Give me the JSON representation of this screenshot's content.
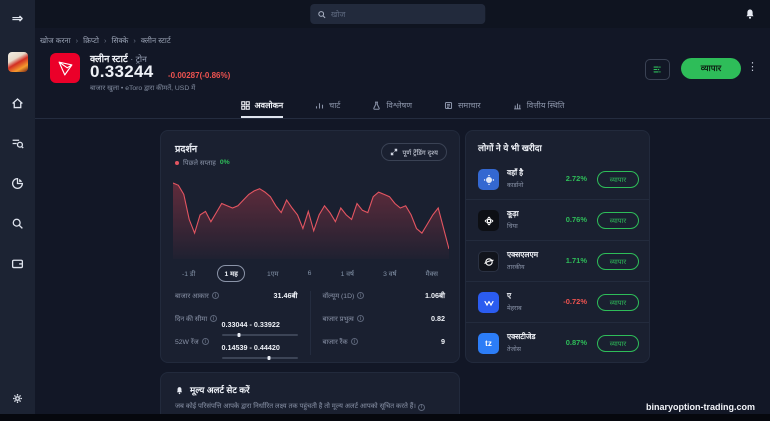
{
  "topbar": {
    "search_placeholder": "खोज"
  },
  "breadcrumb": {
    "separator": "›",
    "items": [
      "खोज करना",
      "क्रिप्टो",
      "सिक्के",
      "क्लीन स्टार्ट"
    ]
  },
  "asset_header": {
    "name": "क्लीन स्टार्ट",
    "name_sep": "·",
    "symbol": "ट्रोन",
    "price": "0.33244",
    "change": "-0.00287(-0.86%)",
    "market_status": "बाजार खुला • eToro द्वारा कीमतें, USD में",
    "trade_label": "व्यापार",
    "logo_icon": "tron-icon"
  },
  "tabs": [
    {
      "label": "अवलोकन",
      "icon": "grid-icon",
      "active": true
    },
    {
      "label": "चार्ट",
      "icon": "chart-bars-icon",
      "active": false
    },
    {
      "label": "विश्लेषण",
      "icon": "flask-icon",
      "active": false
    },
    {
      "label": "समाचार",
      "icon": "news-icon",
      "active": false
    },
    {
      "label": "वित्तीय स्थिति",
      "icon": "bar-chart-icon",
      "active": false
    }
  ],
  "performance": {
    "title": "प्रदर्शन",
    "legend_label": "पिछले सप्ताह",
    "legend_value": "0%",
    "fullscreen_label": "पूर्ण ट्रेंडिंग दृश्य",
    "ranges": [
      "-1 डी",
      "1 मह",
      "1एम",
      "6",
      "1 वर्ष",
      "3 वर्ष",
      "मैक्स"
    ],
    "selected_range": "1 मह",
    "stats_left": [
      {
        "label": "बाजार आकार",
        "value": "31.46बी"
      },
      {
        "label": "दिन की सीमा",
        "value": "0.33044 - 0.33922",
        "marker": 0.23
      },
      {
        "label": "52W रेंज",
        "value": "0.14539 - 0.44420",
        "marker": 0.63
      }
    ],
    "stats_right": [
      {
        "label": "वॉल्यूम (1D)",
        "value": "1.06बी"
      },
      {
        "label": "बाजार प्रभुत्व",
        "value": "0.82"
      },
      {
        "label": "बाजार रैंक",
        "value": "9"
      }
    ]
  },
  "chart_data": {
    "type": "area",
    "title": "प्रदर्शन",
    "series_name": "TRX/USD",
    "x_range": "1 मह",
    "line_color": "#e35561",
    "ylim": [
      0.325,
      0.3425
    ],
    "values": [
      0.33935,
      0.33894,
      0.3373,
      0.33279,
      0.33033,
      0.33361,
      0.33423,
      0.33238,
      0.33402,
      0.33566,
      0.33525,
      0.33484,
      0.33525,
      0.33628,
      0.3373,
      0.33792,
      0.33833,
      0.33771,
      0.33689,
      0.33525,
      0.33402,
      0.33628,
      0.33484,
      0.33361,
      0.33115,
      0.33423,
      0.33074,
      0.33361,
      0.33525,
      0.33402,
      0.33238,
      0.33484,
      0.33361,
      0.33279,
      0.33566,
      0.33443,
      0.33402,
      0.33689,
      0.33771,
      0.3373,
      0.33689,
      0.33566,
      0.33484,
      0.33525,
      0.33361,
      0.33115,
      0.33033,
      0.33197,
      0.33361,
      0.33484,
      0.33115,
      0.32746
    ]
  },
  "also_bought": {
    "title": "लोगों ने ये भी खरीदा",
    "trade_label": "व्यापार",
    "items": [
      {
        "name": "वहाँ है",
        "subtitle": "कार्डानो",
        "change": "2.72%",
        "direction": "up",
        "icon": "cardano-icon",
        "icon_bg": "#3468d1"
      },
      {
        "name": "कूड़ा",
        "subtitle": "चिया",
        "change": "0.76%",
        "direction": "up",
        "icon": "chia-icon",
        "icon_bg": "#0d0f14"
      },
      {
        "name": "एक्सएलएम",
        "subtitle": "तारकीय",
        "change": "1.71%",
        "direction": "up",
        "icon": "stellar-icon",
        "icon_bg": "#11141c"
      },
      {
        "name": "ए",
        "subtitle": "मेहराब",
        "change": "-0.72%",
        "direction": "down",
        "icon": "vechain-icon",
        "icon_bg": "#2b5cf0"
      },
      {
        "name": "एक्सटीजेड",
        "subtitle": "तेजोस",
        "change": "0.87%",
        "direction": "up",
        "icon": "tezos-icon",
        "icon_bg": "#2c7df7",
        "glyph": "tz"
      }
    ]
  },
  "price_alert": {
    "title": "मूल्य अलर्ट सेट करें",
    "description": "जब कोई परिसंपत्ति आपके द्वारा निर्धारित लक्ष्य तक पहुंचती है तो मूल्य अलर्ट आपको सूचित करते हैं।"
  },
  "watermark": "binaryoption-trading.com",
  "colors": {
    "green": "#2ebd59",
    "red": "#ef5350",
    "tron_red": "#eb0029",
    "chart_line": "#e35561"
  }
}
